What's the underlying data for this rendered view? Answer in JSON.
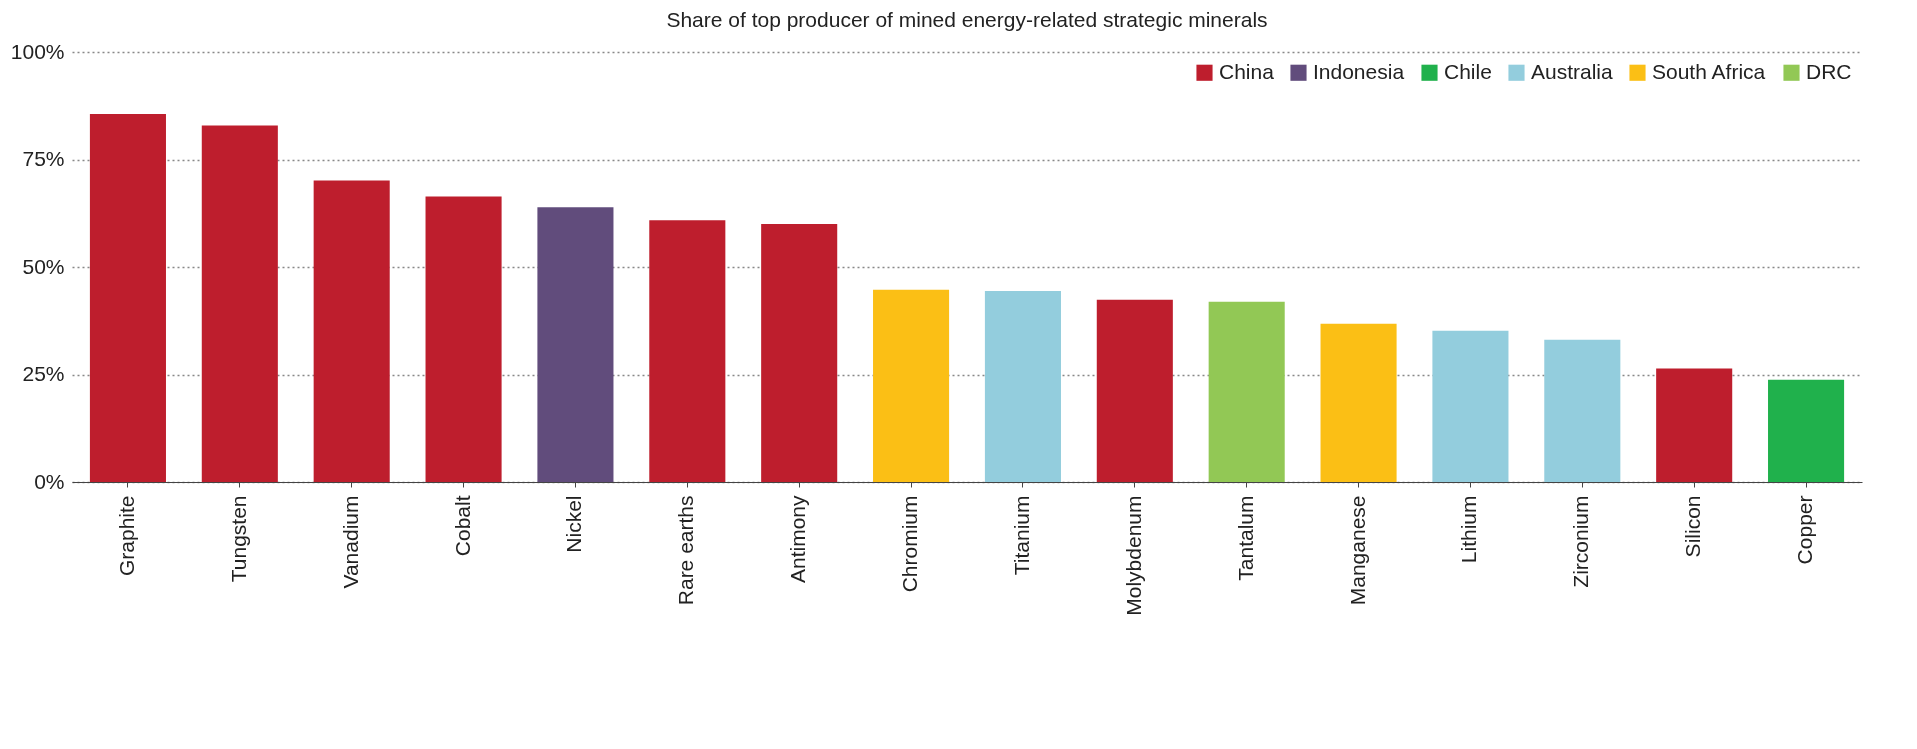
{
  "chart_data": {
    "type": "bar",
    "title": "Share of top producer of mined energy-related strategic minerals",
    "categories": [
      "Graphite",
      "Tungsten",
      "Vanadium",
      "Cobalt",
      "Nickel",
      "Rare earths",
      "Antimony",
      "Chromium",
      "Titanium",
      "Molybdenum",
      "Tantalum",
      "Manganese",
      "Lithium",
      "Zirconium",
      "Silicon",
      "Copper"
    ],
    "stacked": true,
    "series": [
      {
        "name": "China",
        "color": "#be1e2d",
        "values": [
          85.6,
          82.9,
          70.1,
          66.4,
          null,
          60.9,
          60,
          null,
          null,
          42.4,
          null,
          null,
          null,
          null,
          26.4,
          null
        ]
      },
      {
        "name": "Indonesia",
        "color": "#614c7c",
        "values": [
          null,
          null,
          null,
          null,
          63.9,
          null,
          null,
          null,
          null,
          null,
          null,
          null,
          null,
          null,
          null,
          null
        ]
      },
      {
        "name": "Chile",
        "color": "#20b14c",
        "values": [
          null,
          null,
          null,
          null,
          null,
          null,
          null,
          null,
          null,
          null,
          null,
          null,
          null,
          null,
          null,
          23.8
        ]
      },
      {
        "name": "Australia",
        "color": "#93cddd",
        "values": [
          null,
          null,
          null,
          null,
          null,
          null,
          null,
          null,
          44.4,
          null,
          null,
          null,
          35.2,
          33.1,
          null,
          null
        ]
      },
      {
        "name": "South Africa",
        "color": "#fbbf15",
        "values": [
          null,
          null,
          null,
          null,
          null,
          null,
          null,
          44.7,
          null,
          null,
          null,
          36.8,
          null,
          null,
          null,
          null
        ]
      },
      {
        "name": "DRC",
        "color": "#92c855",
        "values": [
          null,
          null,
          null,
          null,
          null,
          null,
          null,
          null,
          null,
          null,
          41.9,
          null,
          null,
          null,
          null,
          null
        ]
      }
    ],
    "ylim": [
      0,
      100
    ],
    "yticks": [
      {
        "value": 0,
        "label": "0%"
      },
      {
        "value": 25,
        "label": "25%"
      },
      {
        "value": 50,
        "label": "50%"
      },
      {
        "value": 75,
        "label": "75%"
      },
      {
        "value": 100,
        "label": "100%"
      }
    ],
    "grid": "y",
    "legend": "top right"
  }
}
